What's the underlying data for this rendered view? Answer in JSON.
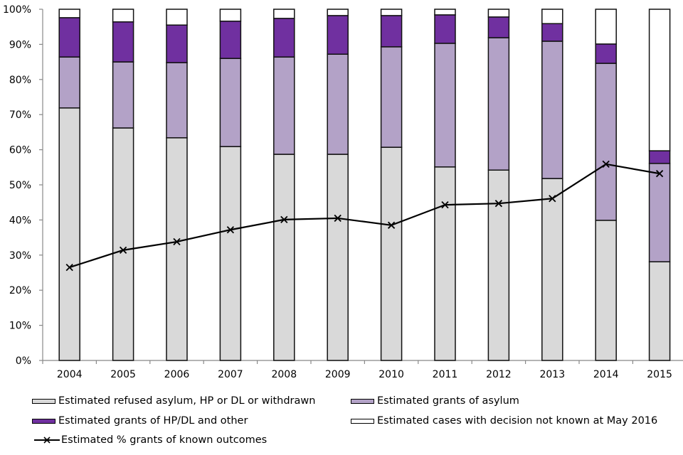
{
  "chart_data": {
    "type": "bar",
    "stacked": true,
    "title": "",
    "xlabel": "",
    "ylabel": "",
    "ylim": [
      0,
      100
    ],
    "yticks": [
      "0%",
      "10%",
      "20%",
      "30%",
      "40%",
      "50%",
      "60%",
      "70%",
      "80%",
      "90%",
      "100%"
    ],
    "grid": false,
    "categories": [
      "2004",
      "2005",
      "2006",
      "2007",
      "2008",
      "2009",
      "2010",
      "2011",
      "2012",
      "2013",
      "2014",
      "2015"
    ],
    "series": [
      {
        "name": "Estimated refused asylum, HP or DL or withdrawn",
        "kind": "bar",
        "color": "#d9d9d9",
        "values": [
          71.9,
          66.2,
          63.4,
          60.9,
          58.7,
          58.7,
          60.7,
          55.1,
          54.2,
          51.8,
          39.9,
          28.1
        ]
      },
      {
        "name": "Estimated grants of asylum",
        "kind": "bar",
        "color": "#b3a2c7",
        "values": [
          14.5,
          18.8,
          21.4,
          25.1,
          27.7,
          28.5,
          28.6,
          35.2,
          37.7,
          39.1,
          44.7,
          28.0
        ]
      },
      {
        "name": "Estimated grants of HP/DL and other",
        "kind": "bar",
        "color": "#7030a0",
        "values": [
          11.2,
          11.4,
          10.7,
          10.6,
          11.0,
          11.0,
          8.9,
          8.1,
          5.9,
          5.0,
          5.5,
          3.6
        ]
      },
      {
        "name": "Estimated cases with decision not known at May 2016",
        "kind": "bar",
        "color": "#ffffff",
        "values": [
          2.4,
          3.6,
          4.5,
          3.4,
          2.6,
          1.8,
          1.8,
          1.6,
          2.2,
          4.1,
          9.9,
          40.3
        ]
      },
      {
        "name": "Estimated % grants of known outcomes",
        "kind": "line",
        "color": "#000000",
        "marker": "x",
        "values": [
          26.5,
          31.4,
          33.8,
          37.2,
          40.1,
          40.5,
          38.5,
          44.3,
          44.7,
          46.1,
          55.9,
          53.2
        ]
      }
    ],
    "legend": {
      "placement": "bottom",
      "columns": 2,
      "entries": [
        "Estimated refused asylum, HP or DL or withdrawn",
        "Estimated grants of asylum",
        "Estimated grants of HP/DL and other",
        "Estimated cases with decision not known at May 2016",
        "Estimated % grants of known outcomes"
      ]
    }
  }
}
